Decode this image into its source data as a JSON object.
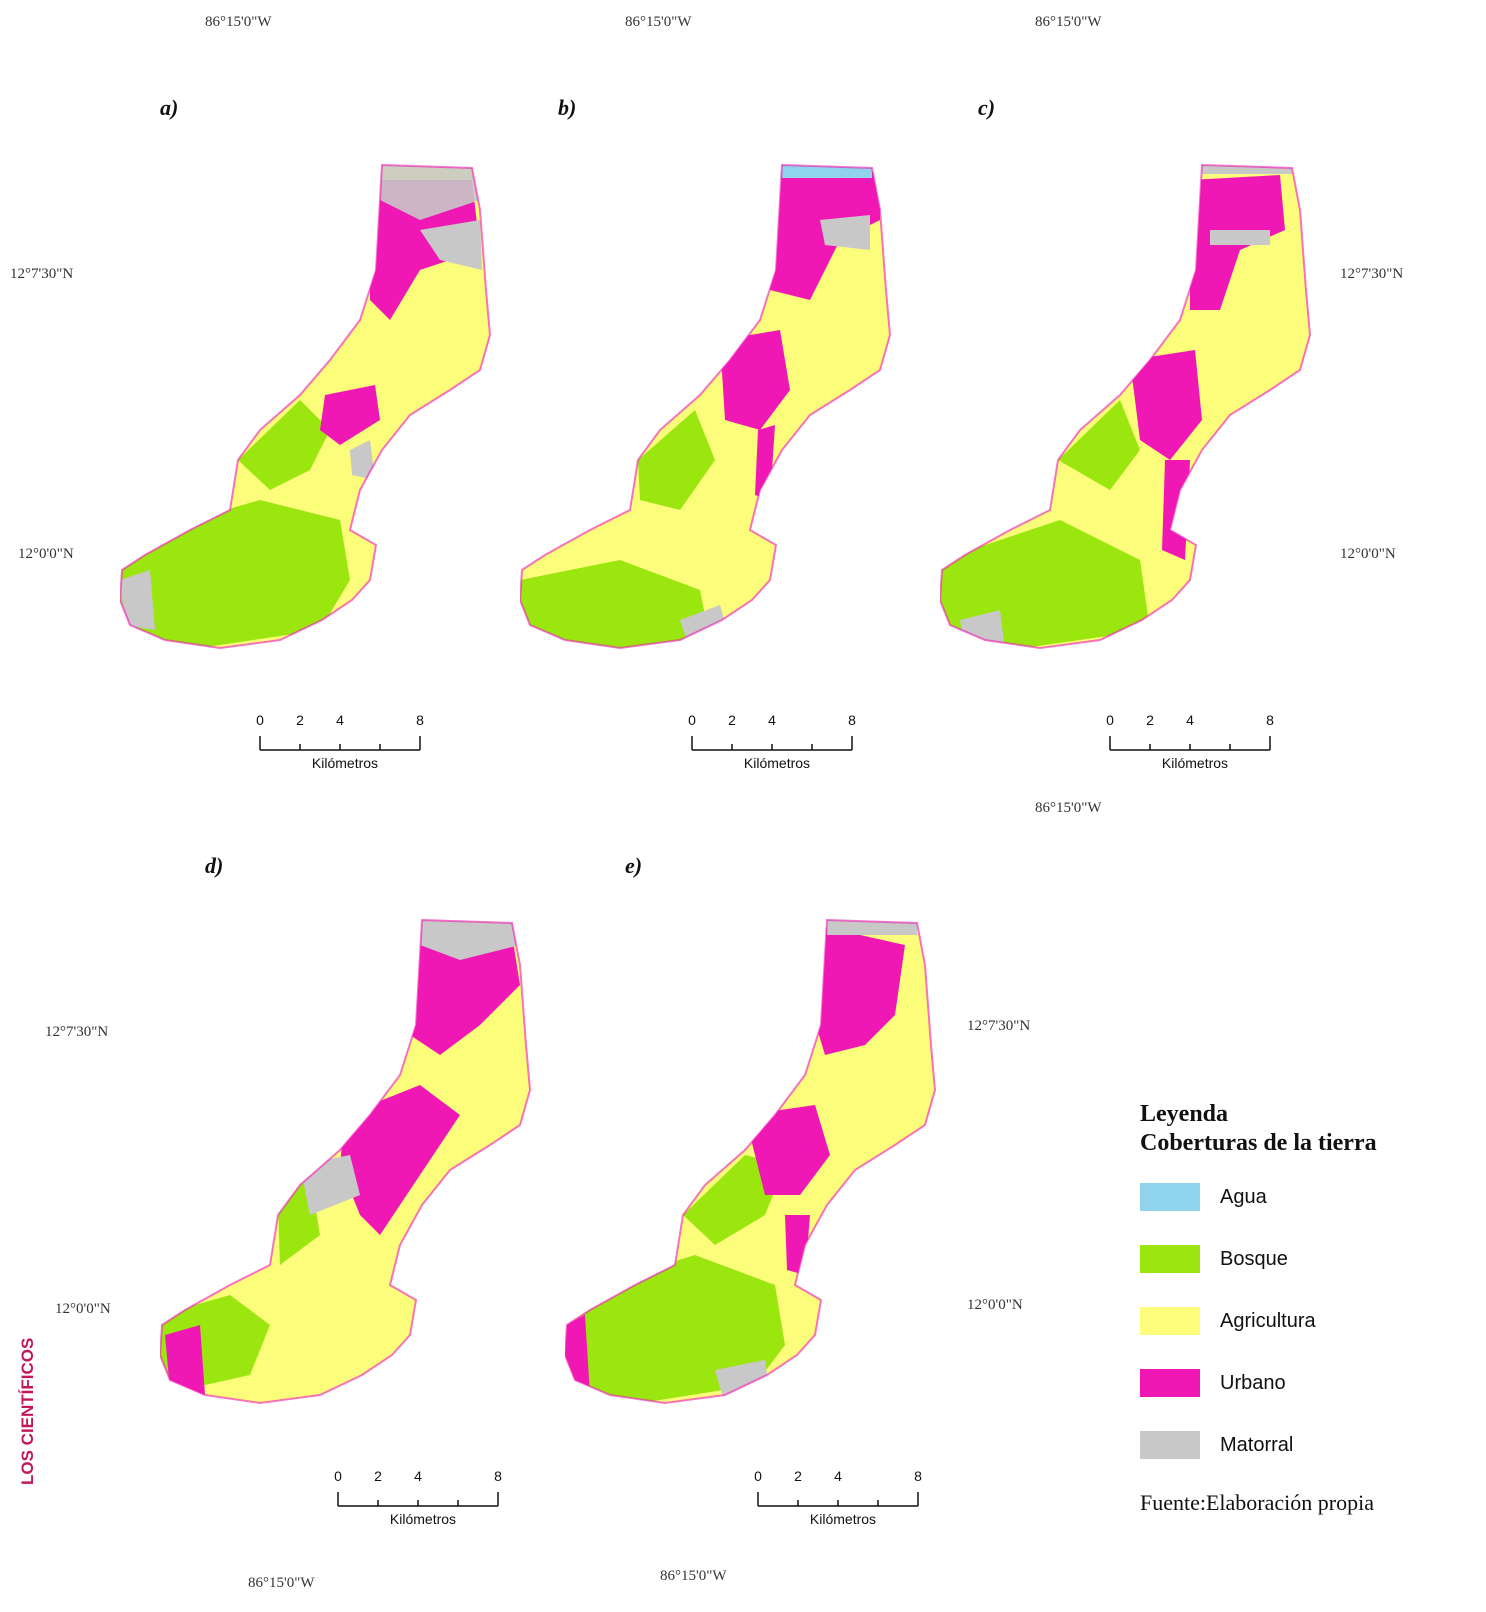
{
  "colors": {
    "agua": "#8fd3ec",
    "bosque": "#9be60f",
    "agricultura": "#fdfd7c",
    "urbano": "#f018b4",
    "matorral": "#c8c8c8"
  },
  "panels": [
    {
      "label": "a)",
      "lon_top": "86°15'0\"W",
      "lat_upper_left": "12°7'30\"N",
      "lat_lower_left": "12°0'0\"N"
    },
    {
      "label": "b)",
      "lon_top": "86°15'0\"W"
    },
    {
      "label": "c)",
      "lon_top": "86°15'0\"W",
      "lat_upper_right": "12°7'30\"N",
      "lat_lower_right": "12°0'0\"N",
      "lon_bottom": "86°15'0\"W"
    },
    {
      "label": "d)",
      "lat_upper_left": "12°7'30\"N",
      "lat_lower_left": "12°0'0\"N",
      "lon_bottom": "86°15'0\"W"
    },
    {
      "label": "e)",
      "lat_upper_right": "12°7'30\"N",
      "lat_lower_right": "12°0'0\"N",
      "lon_bottom": "86°15'0\"W"
    }
  ],
  "scale": {
    "ticks": [
      "0",
      "2",
      "4",
      "8"
    ],
    "unit": "Kilómetros"
  },
  "legend": {
    "title": "Leyenda",
    "subtitle": "Coberturas de la tierra",
    "items": [
      {
        "label": "Agua",
        "color": "#8fd3ec"
      },
      {
        "label": "Bosque",
        "color": "#9be60f"
      },
      {
        "label": "Agricultura",
        "color": "#fdfd7c"
      },
      {
        "label": "Urbano",
        "color": "#f018b4"
      },
      {
        "label": "Matorral",
        "color": "#c8c8c8"
      }
    ],
    "source": "Fuente:Elaboración propia"
  },
  "side_text": "LOS CIENTÍFICOS"
}
